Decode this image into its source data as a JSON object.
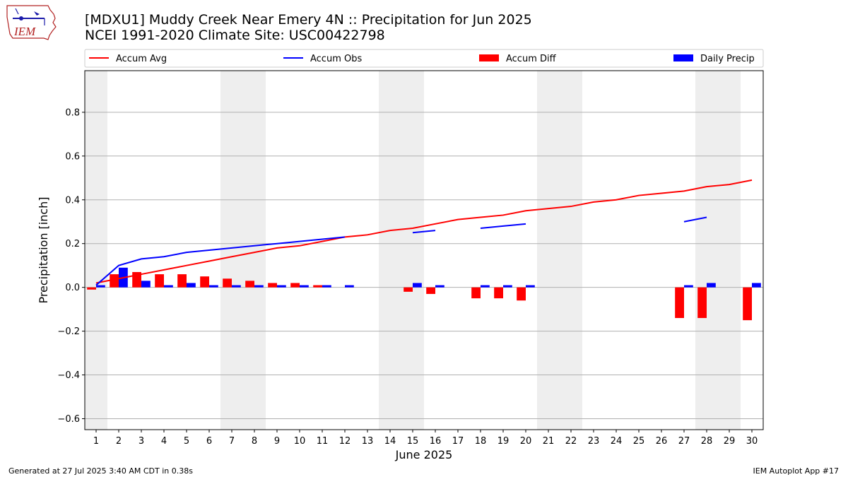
{
  "page": {
    "title_line1": "[MDXU1] Muddy Creek Near Emery 4N :: Precipitation for Jun 2025",
    "title_line2": "NCEI 1991-2020 Climate Site: USC00422798",
    "footer_left": "Generated at 27 Jul 2025 3:40 AM CDT in 0.38s",
    "footer_right": "IEM Autoplot App #17",
    "logo_text": "IEM"
  },
  "colors": {
    "avg": "#ff0000",
    "obs": "#0000ff",
    "diff": "#ff0000",
    "daily": "#0000ff",
    "weekend": "#eeeeee",
    "grid": "#b0b0b0"
  },
  "chart_data": {
    "type": "bar",
    "xlabel": "June 2025",
    "ylabel": "Precipitation [inch]",
    "xlim": [
      0.5,
      30.5
    ],
    "ylim": [
      -0.65,
      0.99
    ],
    "yticks": [
      -0.6,
      -0.4,
      -0.2,
      0.0,
      0.2,
      0.4,
      0.6,
      0.8
    ],
    "ytick_labels": [
      "−0.6",
      "−0.4",
      "−0.2",
      "0.0",
      "0.2",
      "0.4",
      "0.6",
      "0.8"
    ],
    "days": [
      1,
      2,
      3,
      4,
      5,
      6,
      7,
      8,
      9,
      10,
      11,
      12,
      13,
      14,
      15,
      16,
      17,
      18,
      19,
      20,
      21,
      22,
      23,
      24,
      25,
      26,
      27,
      28,
      29,
      30
    ],
    "shaded_ranges": [
      [
        0.5,
        1.5
      ],
      [
        6.5,
        8.5
      ],
      [
        13.5,
        15.5
      ],
      [
        20.5,
        22.5
      ],
      [
        27.5,
        29.5
      ]
    ],
    "legend": [
      "Accum Avg",
      "Accum Obs",
      "Accum Diff",
      "Daily Precip"
    ],
    "series": [
      {
        "name": "Accum Avg",
        "kind": "line",
        "values": [
          0.02,
          0.04,
          0.06,
          0.08,
          0.1,
          0.12,
          0.14,
          0.16,
          0.18,
          0.19,
          0.21,
          0.23,
          0.24,
          0.26,
          0.27,
          0.29,
          0.31,
          0.32,
          0.33,
          0.35,
          0.36,
          0.37,
          0.39,
          0.4,
          0.42,
          0.43,
          0.44,
          0.46,
          0.47,
          0.49
        ]
      },
      {
        "name": "Accum Obs",
        "kind": "line",
        "values": [
          0.01,
          0.1,
          0.13,
          0.14,
          0.16,
          0.17,
          0.18,
          0.19,
          0.2,
          0.21,
          0.22,
          0.23,
          null,
          null,
          0.25,
          0.26,
          null,
          0.27,
          0.28,
          0.29,
          null,
          null,
          null,
          null,
          null,
          null,
          0.3,
          0.32,
          null,
          null
        ]
      },
      {
        "name": "Accum Diff",
        "kind": "bar",
        "values": [
          -0.01,
          0.06,
          0.07,
          0.06,
          0.06,
          0.05,
          0.04,
          0.03,
          0.02,
          0.02,
          0.01,
          0,
          0,
          0,
          -0.02,
          -0.03,
          0,
          -0.05,
          -0.05,
          -0.06,
          0,
          0,
          0,
          0,
          0,
          0,
          -0.14,
          -0.14,
          0,
          -0.15
        ]
      },
      {
        "name": "Daily Precip",
        "kind": "bar",
        "values": [
          0.01,
          0.09,
          0.03,
          0.01,
          0.02,
          0.01,
          0.01,
          0.01,
          0.01,
          0.01,
          0.01,
          0.01,
          0,
          0,
          0.02,
          0.01,
          0,
          0.01,
          0.01,
          0.01,
          0,
          0,
          0,
          0,
          0,
          0,
          0.01,
          0.02,
          0,
          0.02
        ]
      }
    ]
  }
}
